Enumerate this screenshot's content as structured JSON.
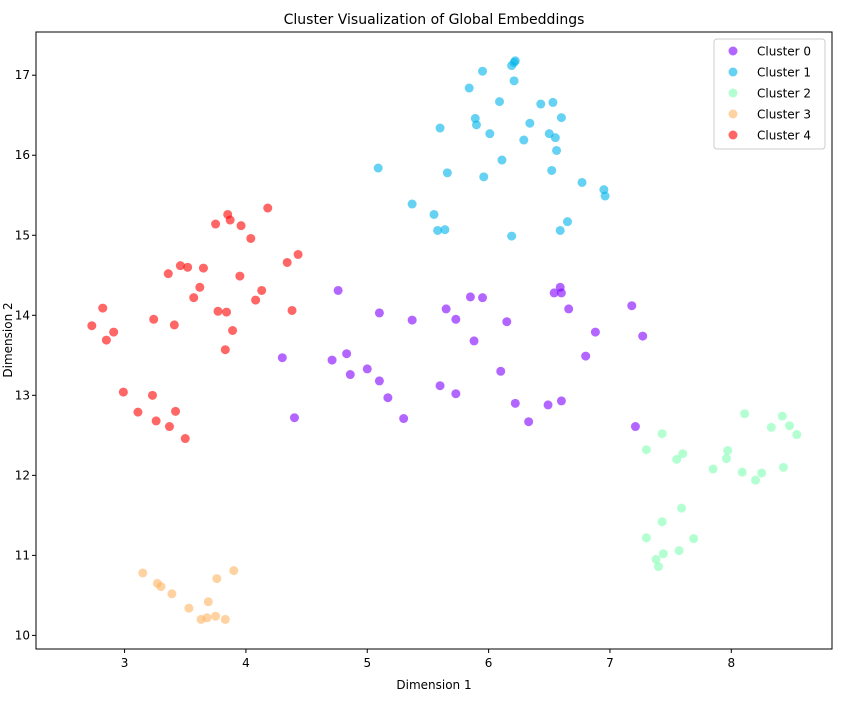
{
  "chart_data": {
    "type": "scatter",
    "title": "Cluster Visualization of Global Embeddings",
    "xlabel": "Dimension 1",
    "ylabel": "Dimension 2",
    "xlim": [
      2.27,
      8.83
    ],
    "ylim": [
      9.83,
      17.54
    ],
    "xticks": [
      3,
      4,
      5,
      6,
      7,
      8
    ],
    "yticks": [
      10,
      11,
      12,
      13,
      14,
      15,
      16,
      17
    ],
    "grid": false,
    "legend_position": "top-right",
    "series": [
      {
        "name": "Cluster 0",
        "color": "#8000ff",
        "points": [
          [
            4.76,
            14.31
          ],
          [
            5.1,
            14.03
          ],
          [
            5.37,
            13.94
          ],
          [
            5.65,
            14.08
          ],
          [
            5.73,
            13.95
          ],
          [
            5.85,
            14.23
          ],
          [
            5.95,
            14.22
          ],
          [
            6.15,
            13.92
          ],
          [
            5.88,
            13.68
          ],
          [
            4.3,
            13.47
          ],
          [
            4.71,
            13.44
          ],
          [
            4.83,
            13.52
          ],
          [
            4.86,
            13.26
          ],
          [
            5.0,
            13.33
          ],
          [
            5.1,
            13.18
          ],
          [
            5.17,
            12.97
          ],
          [
            5.3,
            12.71
          ],
          [
            4.4,
            12.72
          ],
          [
            5.6,
            13.12
          ],
          [
            5.73,
            13.02
          ],
          [
            6.1,
            13.3
          ],
          [
            6.22,
            12.9
          ],
          [
            6.33,
            12.67
          ],
          [
            6.49,
            12.88
          ],
          [
            6.6,
            12.93
          ],
          [
            6.54,
            14.28
          ],
          [
            6.59,
            14.35
          ],
          [
            6.6,
            14.28
          ],
          [
            6.66,
            14.08
          ],
          [
            6.88,
            13.79
          ],
          [
            6.8,
            13.49
          ],
          [
            7.18,
            14.12
          ],
          [
            7.27,
            13.74
          ],
          [
            7.21,
            12.61
          ]
        ]
      },
      {
        "name": "Cluster 1",
        "color": "#00b4eb",
        "points": [
          [
            6.22,
            17.18
          ],
          [
            6.21,
            17.16
          ],
          [
            5.95,
            17.05
          ],
          [
            6.19,
            17.12
          ],
          [
            6.21,
            16.93
          ],
          [
            5.84,
            16.84
          ],
          [
            6.09,
            16.67
          ],
          [
            6.43,
            16.64
          ],
          [
            6.53,
            16.66
          ],
          [
            5.89,
            16.46
          ],
          [
            5.9,
            16.38
          ],
          [
            6.34,
            16.4
          ],
          [
            6.6,
            16.47
          ],
          [
            5.6,
            16.34
          ],
          [
            6.01,
            16.27
          ],
          [
            6.29,
            16.19
          ],
          [
            6.5,
            16.27
          ],
          [
            6.55,
            16.22
          ],
          [
            6.56,
            16.06
          ],
          [
            6.11,
            15.94
          ],
          [
            5.66,
            15.78
          ],
          [
            5.96,
            15.73
          ],
          [
            6.52,
            15.81
          ],
          [
            6.77,
            15.66
          ],
          [
            6.95,
            15.57
          ],
          [
            6.96,
            15.49
          ],
          [
            5.09,
            15.84
          ],
          [
            5.37,
            15.39
          ],
          [
            5.55,
            15.26
          ],
          [
            5.58,
            15.06
          ],
          [
            5.64,
            15.07
          ],
          [
            6.65,
            15.17
          ],
          [
            6.59,
            15.06
          ],
          [
            6.19,
            14.99
          ]
        ]
      },
      {
        "name": "Cluster 2",
        "color": "#80ffb4",
        "points": [
          [
            7.3,
            12.32
          ],
          [
            7.43,
            12.52
          ],
          [
            7.55,
            12.2
          ],
          [
            7.6,
            12.27
          ],
          [
            7.97,
            12.31
          ],
          [
            7.96,
            12.21
          ],
          [
            8.11,
            12.77
          ],
          [
            7.85,
            12.08
          ],
          [
            8.09,
            12.04
          ],
          [
            8.2,
            11.94
          ],
          [
            8.25,
            12.03
          ],
          [
            8.33,
            12.6
          ],
          [
            8.42,
            12.74
          ],
          [
            8.48,
            12.62
          ],
          [
            8.54,
            12.51
          ],
          [
            8.43,
            12.1
          ],
          [
            7.59,
            11.59
          ],
          [
            7.43,
            11.42
          ],
          [
            7.3,
            11.22
          ],
          [
            7.69,
            11.21
          ],
          [
            7.57,
            11.06
          ],
          [
            7.44,
            11.02
          ],
          [
            7.38,
            10.95
          ],
          [
            7.4,
            10.86
          ]
        ]
      },
      {
        "name": "Cluster 3",
        "color": "#ffb462",
        "points": [
          [
            3.15,
            10.78
          ],
          [
            3.27,
            10.65
          ],
          [
            3.3,
            10.61
          ],
          [
            3.39,
            10.52
          ],
          [
            3.76,
            10.71
          ],
          [
            3.9,
            10.81
          ],
          [
            3.69,
            10.42
          ],
          [
            3.53,
            10.34
          ],
          [
            3.63,
            10.2
          ],
          [
            3.68,
            10.22
          ],
          [
            3.75,
            10.24
          ],
          [
            3.83,
            10.2
          ]
        ]
      },
      {
        "name": "Cluster 4",
        "color": "#ff0000",
        "points": [
          [
            2.73,
            13.87
          ],
          [
            2.82,
            14.09
          ],
          [
            2.85,
            13.69
          ],
          [
            2.91,
            13.79
          ],
          [
            2.99,
            13.04
          ],
          [
            3.11,
            12.79
          ],
          [
            3.23,
            13.0
          ],
          [
            3.26,
            12.68
          ],
          [
            3.37,
            12.61
          ],
          [
            3.42,
            12.8
          ],
          [
            3.5,
            12.46
          ],
          [
            3.24,
            13.95
          ],
          [
            3.41,
            13.88
          ],
          [
            3.36,
            14.52
          ],
          [
            3.46,
            14.62
          ],
          [
            3.52,
            14.6
          ],
          [
            3.57,
            14.22
          ],
          [
            3.62,
            14.35
          ],
          [
            3.65,
            14.59
          ],
          [
            3.77,
            14.05
          ],
          [
            3.84,
            14.04
          ],
          [
            3.83,
            13.57
          ],
          [
            3.89,
            13.81
          ],
          [
            3.95,
            14.49
          ],
          [
            4.08,
            14.19
          ],
          [
            4.13,
            14.31
          ],
          [
            3.96,
            15.12
          ],
          [
            4.04,
            14.96
          ],
          [
            3.85,
            15.26
          ],
          [
            3.87,
            15.19
          ],
          [
            3.75,
            15.14
          ],
          [
            4.18,
            15.34
          ],
          [
            4.34,
            14.66
          ],
          [
            4.43,
            14.76
          ],
          [
            4.38,
            14.06
          ]
        ]
      }
    ]
  }
}
